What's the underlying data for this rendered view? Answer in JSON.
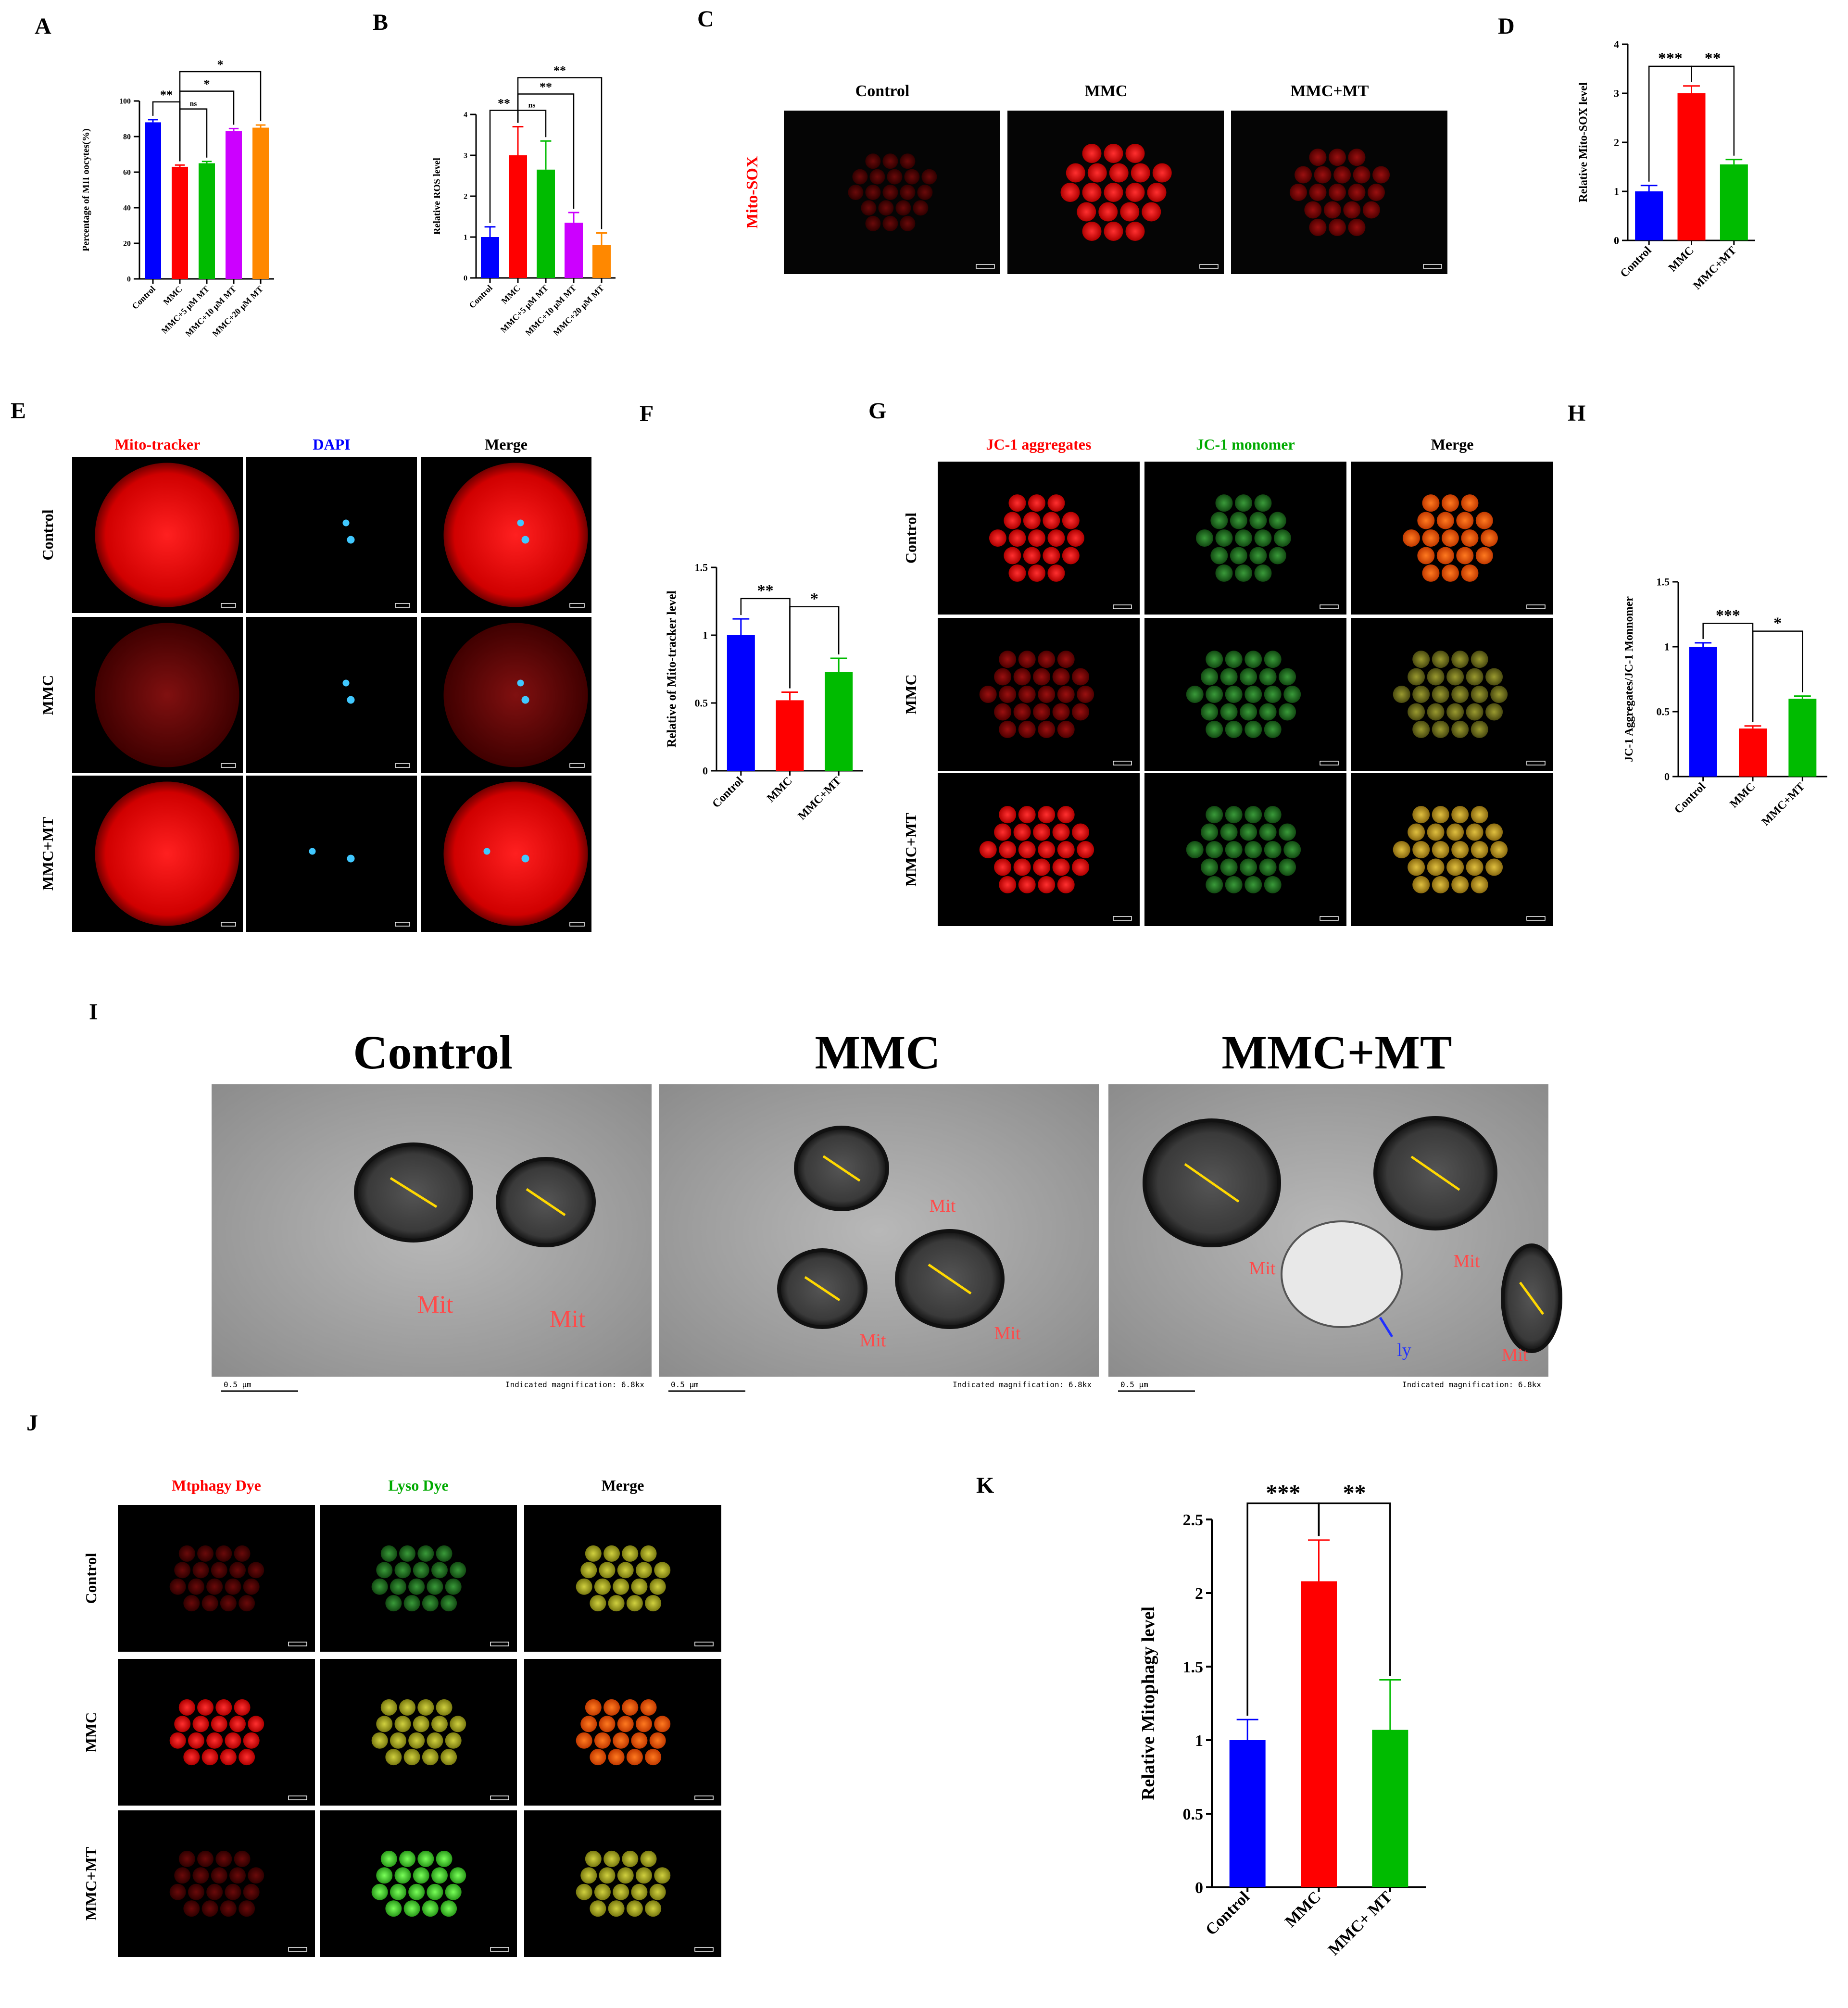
{
  "panels": {
    "A": {
      "label": "A"
    },
    "B": {
      "label": "B"
    },
    "C": {
      "label": "C"
    },
    "D": {
      "label": "D"
    },
    "E": {
      "label": "E"
    },
    "F": {
      "label": "F"
    },
    "G": {
      "label": "G"
    },
    "H": {
      "label": "H"
    },
    "I": {
      "label": "I"
    },
    "J": {
      "label": "J"
    },
    "K": {
      "label": "K"
    }
  },
  "chart_data": [
    {
      "id": "A",
      "type": "bar",
      "categories": [
        "Control",
        "MMC",
        "MMC+5 μM MT",
        "MMC+10 μM MT",
        "MMC+20 μM MT"
      ],
      "values": [
        88,
        63,
        65,
        83,
        85
      ],
      "errors": [
        1.5,
        1,
        1,
        1.5,
        1.5
      ],
      "colors": [
        "#0000ff",
        "#ff0000",
        "#00bb00",
        "#cc00ff",
        "#ff8800"
      ],
      "xlabel": "",
      "ylabel": "Percentage of MII oocytes(%)",
      "ylim": [
        0,
        100
      ],
      "yticks": [
        0,
        20,
        40,
        60,
        80,
        100
      ],
      "sig": [
        {
          "from": 0,
          "to": 1,
          "level": 0,
          "text": "**"
        },
        {
          "from": 1,
          "to": 2,
          "level": 0,
          "text": "ns"
        },
        {
          "from": 1,
          "to": 3,
          "level": 1,
          "text": "*"
        },
        {
          "from": 1,
          "to": 4,
          "level": 2,
          "text": "*"
        }
      ]
    },
    {
      "id": "B",
      "type": "bar",
      "categories": [
        "Control",
        "MMC",
        "MMC+5 μM MT",
        "MMC+10 μM MT",
        "MMC+20 μM MT"
      ],
      "values": [
        1.0,
        3.0,
        2.65,
        1.35,
        0.8
      ],
      "errors": [
        0.25,
        0.7,
        0.7,
        0.25,
        0.3
      ],
      "colors": [
        "#0000ff",
        "#ff0000",
        "#00bb00",
        "#cc00ff",
        "#ff8800"
      ],
      "xlabel": "",
      "ylabel": "Relative ROS level",
      "ylim": [
        0,
        4
      ],
      "yticks": [
        0,
        1,
        2,
        3,
        4
      ],
      "sig": [
        {
          "from": 0,
          "to": 1,
          "level": 0,
          "text": "**"
        },
        {
          "from": 1,
          "to": 2,
          "level": 0,
          "text": "ns"
        },
        {
          "from": 1,
          "to": 3,
          "level": 1,
          "text": "**"
        },
        {
          "from": 1,
          "to": 4,
          "level": 2,
          "text": "**"
        }
      ]
    },
    {
      "id": "D",
      "type": "bar",
      "categories": [
        "Control",
        "MMC",
        "MMC+MT"
      ],
      "values": [
        1.0,
        3.0,
        1.55
      ],
      "errors": [
        0.12,
        0.15,
        0.1
      ],
      "colors": [
        "#0000ff",
        "#ff0000",
        "#00bb00"
      ],
      "xlabel": "",
      "ylabel": "Relative Mito-SOX level",
      "ylim": [
        0,
        4
      ],
      "yticks": [
        0,
        1,
        2,
        3,
        4
      ],
      "sig": [
        {
          "from": 0,
          "to": 1,
          "level": 0,
          "text": "***"
        },
        {
          "from": 1,
          "to": 2,
          "level": 0,
          "text": "**"
        }
      ]
    },
    {
      "id": "F",
      "type": "bar",
      "categories": [
        "Control",
        "MMC",
        "MMC+MT"
      ],
      "values": [
        1.0,
        0.52,
        0.73
      ],
      "errors": [
        0.12,
        0.06,
        0.1
      ],
      "colors": [
        "#0000ff",
        "#ff0000",
        "#00bb00"
      ],
      "xlabel": "",
      "ylabel": "Relative of Mito-tracker level",
      "ylim": [
        0,
        1.5
      ],
      "yticks": [
        0.0,
        0.5,
        1.0,
        1.5
      ],
      "sig": [
        {
          "from": 0,
          "to": 1,
          "level": 0,
          "text": "**"
        },
        {
          "from": 1,
          "to": 2,
          "level": 0,
          "text": "*"
        }
      ]
    },
    {
      "id": "H",
      "type": "bar",
      "categories": [
        "Control",
        "MMC",
        "MMC+MT"
      ],
      "values": [
        1.0,
        0.37,
        0.6
      ],
      "errors": [
        0.03,
        0.02,
        0.02
      ],
      "colors": [
        "#0000ff",
        "#ff0000",
        "#00bb00"
      ],
      "xlabel": "",
      "ylabel": "JC-1 Aggregates/JC-1 Monnomer",
      "ylim": [
        0,
        1.5
      ],
      "yticks": [
        0.0,
        0.5,
        1.0,
        1.5
      ],
      "sig": [
        {
          "from": 0,
          "to": 1,
          "level": 0,
          "text": "***"
        },
        {
          "from": 1,
          "to": 2,
          "level": 0,
          "text": "*"
        }
      ]
    },
    {
      "id": "K",
      "type": "bar",
      "categories": [
        "Control",
        "MMC",
        "MMC+ MT"
      ],
      "values": [
        1.0,
        2.08,
        1.07
      ],
      "errors": [
        0.14,
        0.28,
        0.34
      ],
      "colors": [
        "#0000ff",
        "#ff0000",
        "#00bb00"
      ],
      "xlabel": "",
      "ylabel": "Relative Mitophagy level",
      "ylim": [
        0,
        2.5
      ],
      "yticks": [
        0.0,
        0.5,
        1.0,
        1.5,
        2.0,
        2.5
      ],
      "sig": [
        {
          "from": 0,
          "to": 1,
          "level": 0,
          "text": "***"
        },
        {
          "from": 1,
          "to": 2,
          "level": 0,
          "text": "**"
        }
      ]
    }
  ],
  "micrographs": {
    "C": {
      "columns": [
        "Control",
        "MMC",
        "MMC+MT"
      ],
      "row_label": "Mito-SOX",
      "row_label_color": "#ff0000"
    },
    "E": {
      "columns": [
        "Mito-tracker",
        "DAPI",
        "Merge"
      ],
      "column_colors": [
        "#ff0000",
        "#0000ff",
        "#000000"
      ],
      "rows": [
        "Control",
        "MMC",
        "MMC+MT"
      ]
    },
    "G": {
      "columns": [
        "JC-1 aggregates",
        "JC-1 monomer",
        "Merge"
      ],
      "column_colors": [
        "#ff0000",
        "#00aa00",
        "#000000"
      ],
      "rows": [
        "Control",
        "MMC",
        "MMC+MT"
      ]
    },
    "I": {
      "columns": [
        "Control",
        "MMC",
        "MMC+MT"
      ],
      "scale": "0.5 μm",
      "magnification": "Indicated magnification: 6.8kx",
      "mit_label": "Mit",
      "ly_label": "ly"
    },
    "J": {
      "columns": [
        "Mtphagy Dye",
        "Lyso Dye",
        "Merge"
      ],
      "column_colors": [
        "#ff0000",
        "#00aa00",
        "#000000"
      ],
      "rows": [
        "Control",
        "MMC",
        "MMC+MT"
      ]
    }
  }
}
